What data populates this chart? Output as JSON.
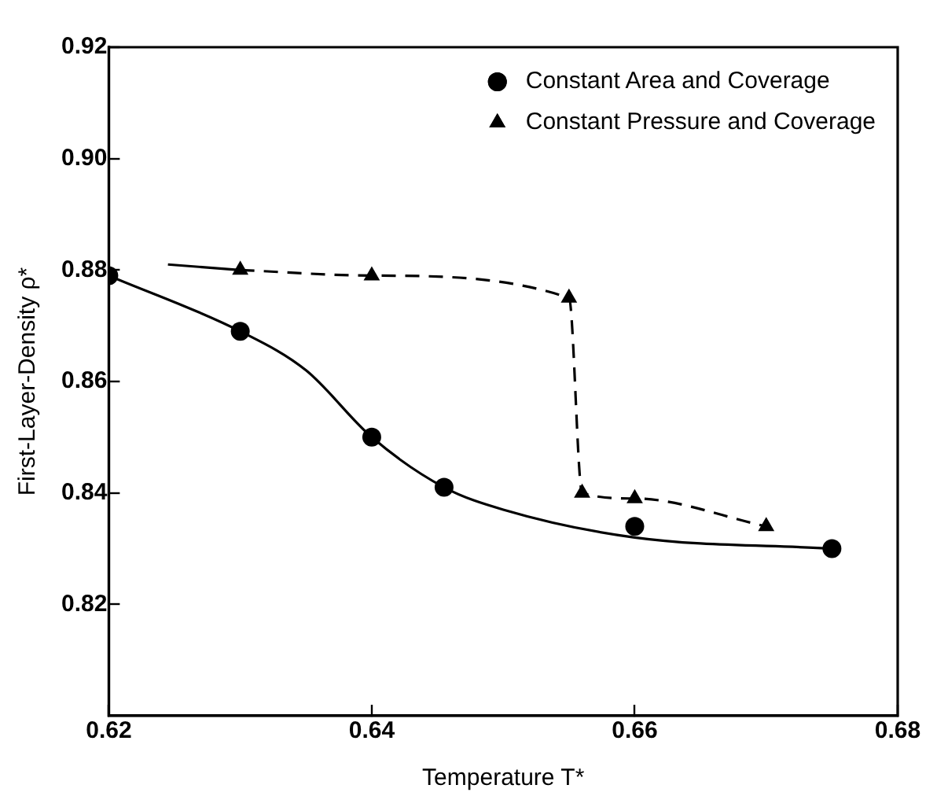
{
  "chart_data": {
    "type": "scatter",
    "xlabel": "Temperature T*",
    "ylabel": "First-Layer-Density ρ*",
    "xlim": [
      0.62,
      0.68
    ],
    "xticks": [
      0.62,
      0.64,
      0.66,
      0.68
    ],
    "ylim": [
      0.8,
      0.92
    ],
    "yticks": [
      {
        "value": 0.82,
        "label": "0.82"
      },
      {
        "value": 0.84,
        "label": "0.84"
      },
      {
        "value": 0.86,
        "label": "0.86"
      },
      {
        "value": 0.88,
        "label": "0.88"
      },
      {
        "value": 0.9,
        "label": "0.90"
      },
      {
        "value": 0.92,
        "label": "0.92"
      }
    ],
    "grid": false,
    "legend": "top right",
    "series": [
      {
        "name": "Constant Area and Coverage",
        "marker": "circle",
        "color": "#000000",
        "x": [
          0.62,
          0.63,
          0.64,
          0.6455,
          0.66,
          0.675
        ],
        "values": [
          0.879,
          0.869,
          0.85,
          0.841,
          0.834,
          0.83
        ]
      },
      {
        "name": "Constant Pressure and Coverage",
        "type": "line",
        "marker": "triangle",
        "line_style": "dashed",
        "color": "#000000",
        "x": [
          0.63,
          0.64,
          0.655,
          0.656,
          0.66,
          0.67
        ],
        "values": [
          0.88,
          0.879,
          0.875,
          0.84,
          0.839,
          0.834
        ]
      },
      {
        "type": "line",
        "marker": "none",
        "line_style": "solid",
        "color": "#000000",
        "x": [
          0.6245,
          0.63
        ],
        "values": [
          0.881,
          0.88
        ]
      },
      {
        "type": "line",
        "marker": "none",
        "line_style": "solid",
        "color": "#000000",
        "x": [
          0.62,
          0.63,
          0.635,
          0.64,
          0.6455,
          0.65,
          0.66,
          0.675
        ],
        "values": [
          0.879,
          0.869,
          0.862,
          0.85,
          0.841,
          0.837,
          0.832,
          0.83
        ]
      }
    ]
  }
}
